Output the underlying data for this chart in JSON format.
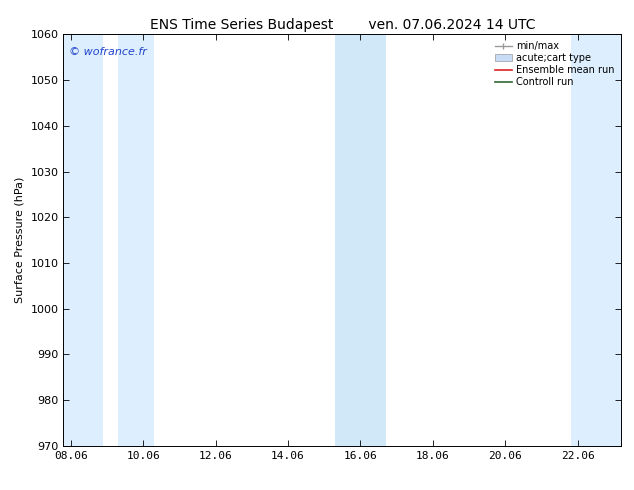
{
  "title_left": "ENS Time Series Budapest",
  "title_right": "ven. 07.06.2024 14 UTC",
  "ylabel": "Surface Pressure (hPa)",
  "ylim": [
    970,
    1060
  ],
  "yticks": [
    970,
    980,
    990,
    1000,
    1010,
    1020,
    1030,
    1040,
    1050,
    1060
  ],
  "xlim_start": 7.8,
  "xlim_end": 23.2,
  "xtick_labels": [
    "08.06",
    "10.06",
    "12.06",
    "14.06",
    "16.06",
    "18.06",
    "20.06",
    "22.06"
  ],
  "xtick_positions": [
    8.0,
    10.0,
    12.0,
    14.0,
    16.0,
    18.0,
    20.0,
    22.0
  ],
  "shaded_bands": [
    {
      "xmin": 7.8,
      "xmax": 8.9,
      "color": "#ddeeff"
    },
    {
      "xmin": 9.3,
      "xmax": 10.3,
      "color": "#ddeeff"
    },
    {
      "xmin": 15.3,
      "xmax": 16.7,
      "color": "#d0e8f8"
    },
    {
      "xmin": 21.8,
      "xmax": 23.2,
      "color": "#ddeeff"
    }
  ],
  "watermark": "© wofrance.fr",
  "watermark_color": "#2244cc",
  "legend_labels": [
    "min/max",
    "acute;cart type",
    "Ensemble mean run",
    "Controll run"
  ],
  "legend_line_colors": [
    "#999999",
    "#c8ddf5",
    "#dd2222",
    "#336633"
  ],
  "background_color": "#ffffff",
  "title_fontsize": 10,
  "axis_fontsize": 8,
  "figsize": [
    6.34,
    4.9
  ],
  "dpi": 100
}
